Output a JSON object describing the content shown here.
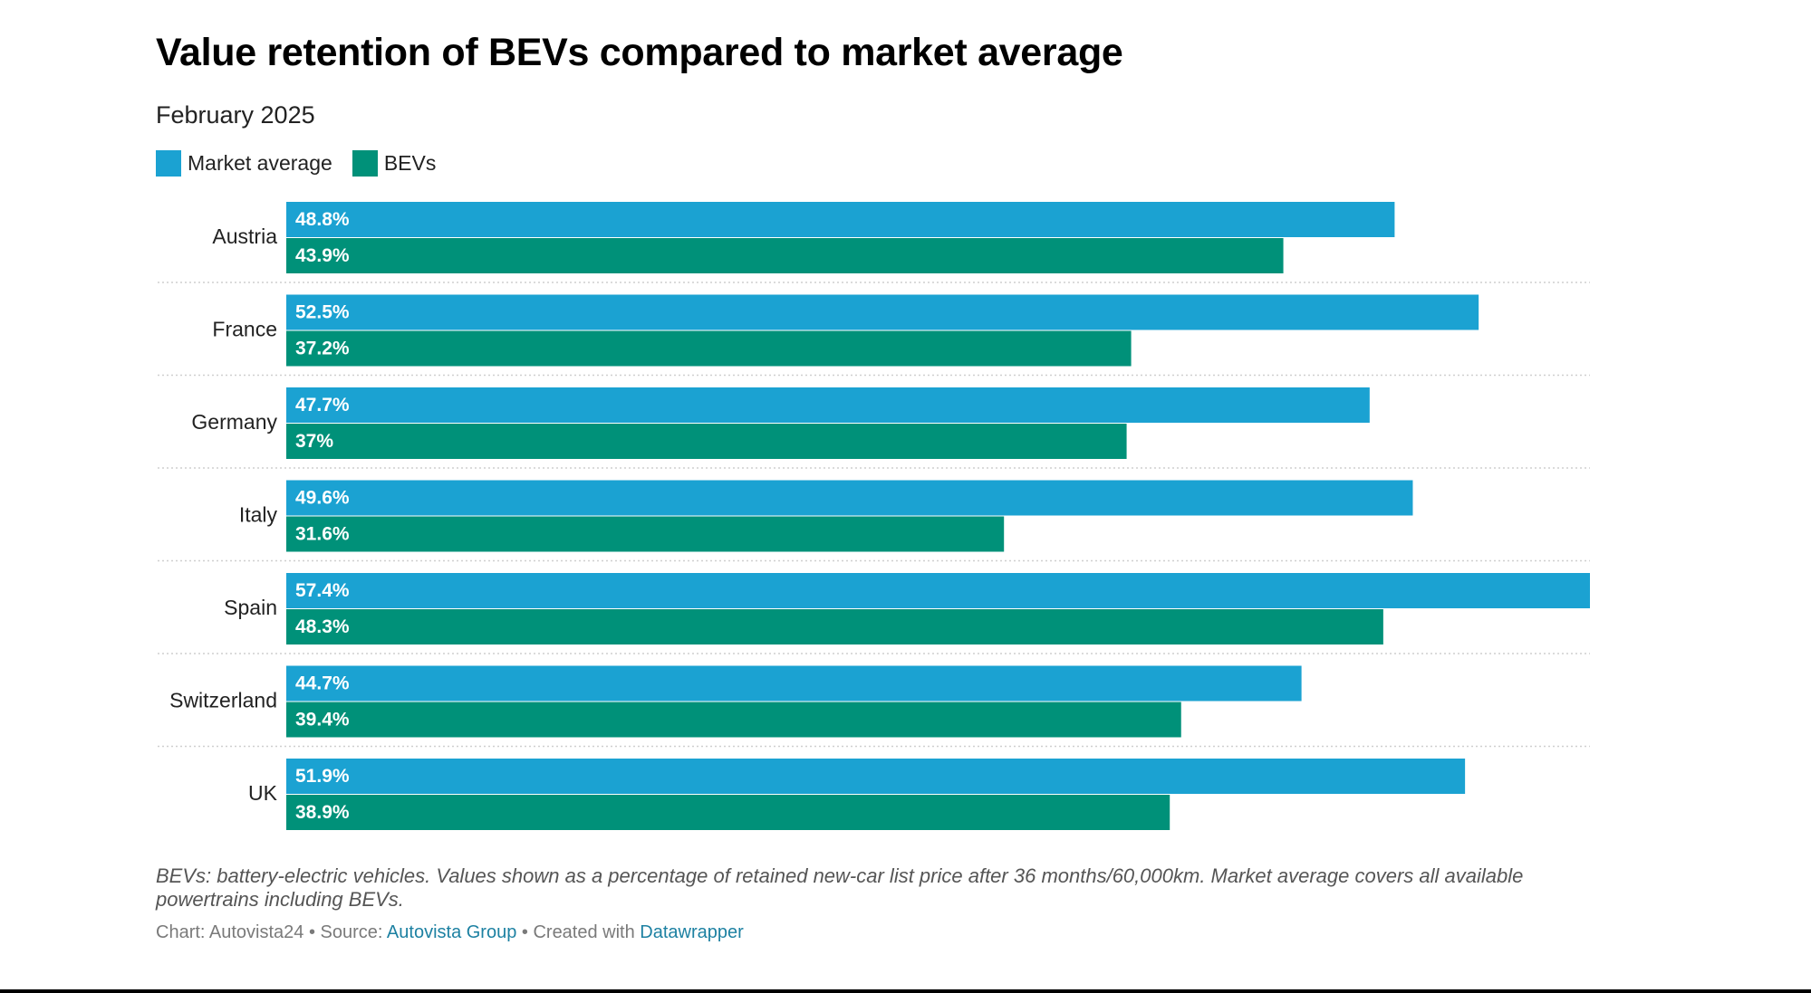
{
  "chart_data": {
    "type": "bar",
    "orientation": "horizontal",
    "title": "Value retention of BEVs compared to market average",
    "subtitle": "February 2025",
    "categories": [
      "Austria",
      "France",
      "Germany",
      "Italy",
      "Spain",
      "Switzerland",
      "UK"
    ],
    "series": [
      {
        "name": "Market average",
        "color": "#1ba2d2",
        "values": [
          48.8,
          52.5,
          47.7,
          49.6,
          57.4,
          44.7,
          51.9
        ],
        "labels": [
          "48.8%",
          "52.5%",
          "47.7%",
          "49.6%",
          "57.4%",
          "44.7%",
          "51.9%"
        ]
      },
      {
        "name": "BEVs",
        "color": "#009179",
        "values": [
          43.9,
          37.2,
          37,
          31.6,
          48.3,
          39.4,
          38.9
        ],
        "labels": [
          "43.9%",
          "37.2%",
          "37%",
          "31.6%",
          "48.3%",
          "39.4%",
          "38.9%"
        ]
      }
    ],
    "xlim": [
      0,
      57.4
    ],
    "xlabel": "",
    "ylabel": "",
    "grid": false,
    "legend_position": "top-left",
    "label_position": "inside-start"
  },
  "footnote": "BEVs: battery-electric vehicles. Values shown as a percentage of retained new-car list price after 36 months/60,000km. Market average covers all available powertrains including BEVs.",
  "credit": {
    "chart_prefix": "Chart: Autovista24 • Source: ",
    "source_link": "Autovista Group",
    "created_prefix": " • Created with ",
    "tool_link": "Datawrapper"
  }
}
